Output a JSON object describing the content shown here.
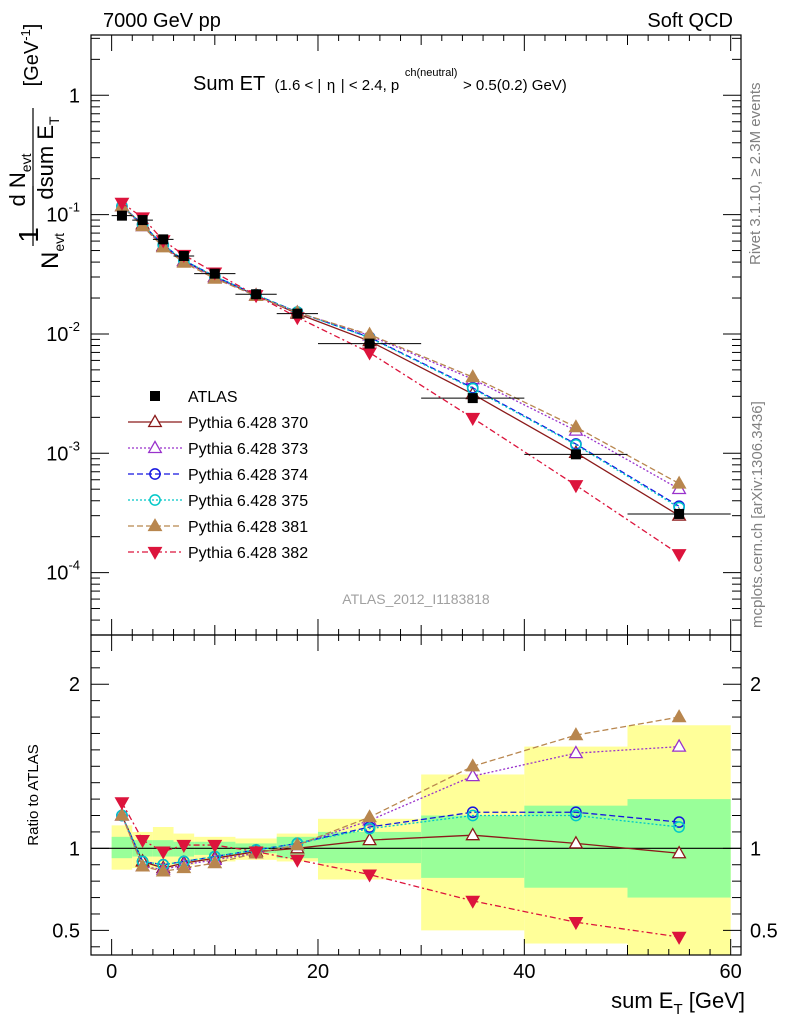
{
  "header": {
    "left": "7000 GeV pp",
    "right": "Soft QCD"
  },
  "title": {
    "main": "Sum ET",
    "cond_a": "(1.6 < |",
    "eta": "η",
    "cond_b": "| < 2.4, p",
    "p_sup": "ch(neutral)",
    "cond_c": " > 0.5(0.2) GeV)"
  },
  "side_labels": {
    "rivet": "Rivet 3.1.10, ≥ 2.3M events",
    "mcplots": "mcplots.cern.ch [arXiv:1306.3436]"
  },
  "analysis_id": "ATLAS_2012_I1183818",
  "axes": {
    "ylabel_top_a": "1",
    "ylabel_top_b": "d N",
    "ylabel_top_c": "evt",
    "ylabel_bot_a": "N",
    "ylabel_bot_b": "evt",
    "ylabel_bot_c": "dsum E",
    "ylabel_bot_d": "T",
    "ylabel_unit": "[GeV",
    "ylabel_unit_sup": "-1",
    "ylabel_unit_end": "]",
    "ratio_ylabel": "Ratio to ATLAS",
    "xlabel_a": "sum E",
    "xlabel_sub": "T",
    "xlabel_b": " [GeV]"
  },
  "colors": {
    "ATLAS": "#000000",
    "370": "#8b1a1a",
    "373": "#9932cc",
    "374": "#1515e0",
    "375": "#00c8c8",
    "381": "#b8864e",
    "382": "#dc143c",
    "band_yellow": "#ffff99",
    "band_green": "#99ff99"
  },
  "chart_data": {
    "type": "scatter",
    "main_panel": {
      "xlim": [
        -2,
        61
      ],
      "ylim": [
        3e-05,
        3.2
      ],
      "yscale": "log",
      "yticks": [
        {
          "v": 1,
          "label": "1"
        },
        {
          "v": 0.1,
          "label": "10",
          "sup": "-1"
        },
        {
          "v": 0.01,
          "label": "10",
          "sup": "-2"
        },
        {
          "v": 0.001,
          "label": "10",
          "sup": "-3"
        },
        {
          "v": 0.0001,
          "label": "10",
          "sup": "-4"
        }
      ]
    },
    "ratio_panel": {
      "ylim": [
        0.35,
        2.3
      ],
      "ylabel": "Ratio to ATLAS",
      "yticks": [
        0.5,
        1,
        2
      ],
      "ytick_labels": [
        "0.5",
        "1",
        "2"
      ]
    },
    "xticks": [
      0,
      20,
      40,
      60
    ],
    "xtick_labels": [
      "0",
      "20",
      "40",
      "60"
    ],
    "x": [
      1,
      3,
      5,
      7,
      10,
      14,
      18,
      25,
      35,
      45,
      55
    ],
    "bins": [
      [
        0,
        2
      ],
      [
        2,
        4
      ],
      [
        4,
        6
      ],
      [
        6,
        8
      ],
      [
        8,
        12
      ],
      [
        12,
        16
      ],
      [
        16,
        20
      ],
      [
        20,
        30
      ],
      [
        30,
        40
      ],
      [
        40,
        50
      ],
      [
        50,
        60
      ]
    ],
    "data": {
      "name": "ATLAS",
      "values": [
        0.098,
        0.09,
        0.062,
        0.045,
        0.032,
        0.0215,
        0.0148,
        0.0083,
        0.0029,
        0.00098,
        0.00031
      ]
    },
    "band_green": [
      [
        0.94,
        1.07
      ],
      [
        0.95,
        1.05
      ],
      [
        0.95,
        1.05
      ],
      [
        0.95,
        1.04
      ],
      [
        0.96,
        1.04
      ],
      [
        0.97,
        1.03
      ],
      [
        0.94,
        1.07
      ],
      [
        0.91,
        1.1
      ],
      [
        0.82,
        1.2
      ],
      [
        0.76,
        1.26
      ],
      [
        0.7,
        1.3
      ]
    ],
    "band_yellow": [
      [
        0.87,
        1.14
      ],
      [
        0.88,
        1.1
      ],
      [
        0.88,
        1.13
      ],
      [
        0.9,
        1.09
      ],
      [
        0.92,
        1.07
      ],
      [
        0.93,
        1.06
      ],
      [
        0.92,
        1.09
      ],
      [
        0.81,
        1.18
      ],
      [
        0.5,
        1.45
      ],
      [
        0.42,
        1.62
      ],
      [
        0.35,
        1.75
      ]
    ],
    "series": [
      {
        "name": "Pythia 6.428 370",
        "marker": "triangle-open",
        "dash": "",
        "ratio": [
          1.2,
          0.92,
          0.88,
          0.91,
          0.94,
          0.98,
          1.0,
          1.05,
          1.08,
          1.03,
          0.97
        ]
      },
      {
        "name": "Pythia 6.428 373",
        "marker": "triangle-open",
        "dash": "2,2",
        "ratio": [
          1.2,
          0.89,
          0.87,
          0.9,
          0.93,
          0.97,
          1.02,
          1.17,
          1.44,
          1.58,
          1.62
        ]
      },
      {
        "name": "Pythia 6.428 374",
        "marker": "circle-open",
        "dash": "6,3",
        "ratio": [
          1.2,
          0.92,
          0.9,
          0.92,
          0.95,
          0.99,
          1.03,
          1.13,
          1.22,
          1.22,
          1.16
        ]
      },
      {
        "name": "Pythia 6.428 375",
        "marker": "circle-open",
        "dash": "2,2",
        "ratio": [
          1.2,
          0.92,
          0.9,
          0.92,
          0.95,
          0.99,
          1.03,
          1.12,
          1.2,
          1.2,
          1.13
        ]
      },
      {
        "name": "Pythia 6.428 381",
        "marker": "triangle-filled",
        "dash": "6,3",
        "ratio": [
          1.2,
          0.89,
          0.86,
          0.88,
          0.91,
          0.97,
          1.02,
          1.19,
          1.5,
          1.69,
          1.8
        ]
      },
      {
        "name": "Pythia 6.428 382",
        "marker": "triangle-down-filled",
        "dash": "6,3,2,3",
        "ratio": [
          1.28,
          1.05,
          0.98,
          1.02,
          1.02,
          0.98,
          0.93,
          0.84,
          0.68,
          0.55,
          0.46
        ]
      }
    ],
    "series_colors": [
      "#8b1a1a",
      "#9932cc",
      "#1515e0",
      "#00c8c8",
      "#b8864e",
      "#dc143c"
    ],
    "ratio_line": 1
  }
}
